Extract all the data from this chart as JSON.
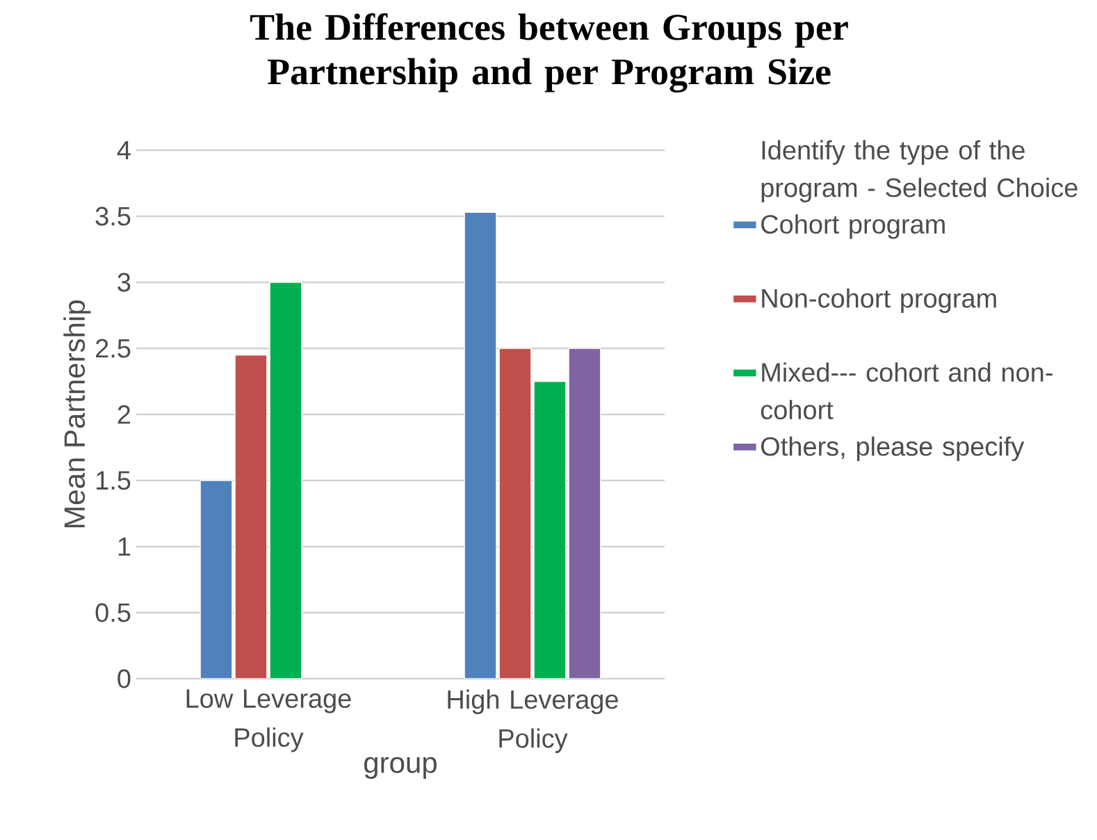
{
  "chart_data": {
    "type": "bar",
    "title": "The Differences between Groups per Partnership and per Program Size",
    "xlabel": "group",
    "ylabel": "Mean Partnership",
    "legend_title": "Identify the type of the program - Selected Choice",
    "categories": [
      "Low Leverage Policy",
      "High Leverage Policy"
    ],
    "series": [
      {
        "name": "Cohort program",
        "color": "#4f81bd",
        "values": [
          1.5,
          3.53
        ]
      },
      {
        "name": "Non-cohort program",
        "color": "#c0504d",
        "values": [
          2.45,
          2.5
        ]
      },
      {
        "name": "Mixed--- cohort and non-cohort",
        "color": "#00b050",
        "values": [
          3.0,
          2.25
        ]
      },
      {
        "name": "Others, please specify",
        "color": "#8064a2",
        "values": [
          null,
          2.5
        ]
      }
    ],
    "ylim": [
      0,
      4
    ],
    "yticks": [
      0,
      0.5,
      1,
      1.5,
      2,
      2.5,
      3,
      3.5,
      4
    ],
    "grid": "y",
    "legend": "right"
  }
}
